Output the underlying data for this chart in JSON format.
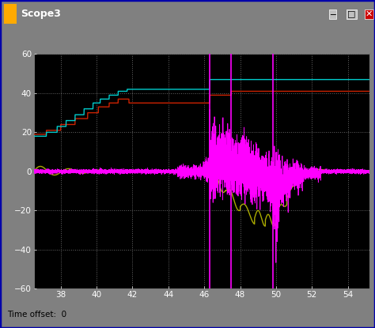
{
  "title": "Scope3",
  "time_offset": "Time offset:  0",
  "xlim": [
    36.5,
    55.2
  ],
  "ylim": [
    -60,
    60
  ],
  "xticks": [
    38,
    40,
    42,
    44,
    46,
    48,
    50,
    52,
    54
  ],
  "yticks": [
    -60,
    -40,
    -20,
    0,
    20,
    40,
    60
  ],
  "bg_color": "#000000",
  "gray_border": "#808080",
  "grid_color": "#555555",
  "cyan_color": "#00CCCC",
  "red_color": "#CC2200",
  "magenta_color": "#FF00FF",
  "yellow_color": "#AAAA00",
  "toolbar_bg": "#C8C8C8",
  "title_bar_color": "#0000CC",
  "outer_bg": "#808080",
  "blue_border": "#0000AA",
  "vline1": 46.3,
  "vline2": 47.5,
  "vline3": 49.82
}
